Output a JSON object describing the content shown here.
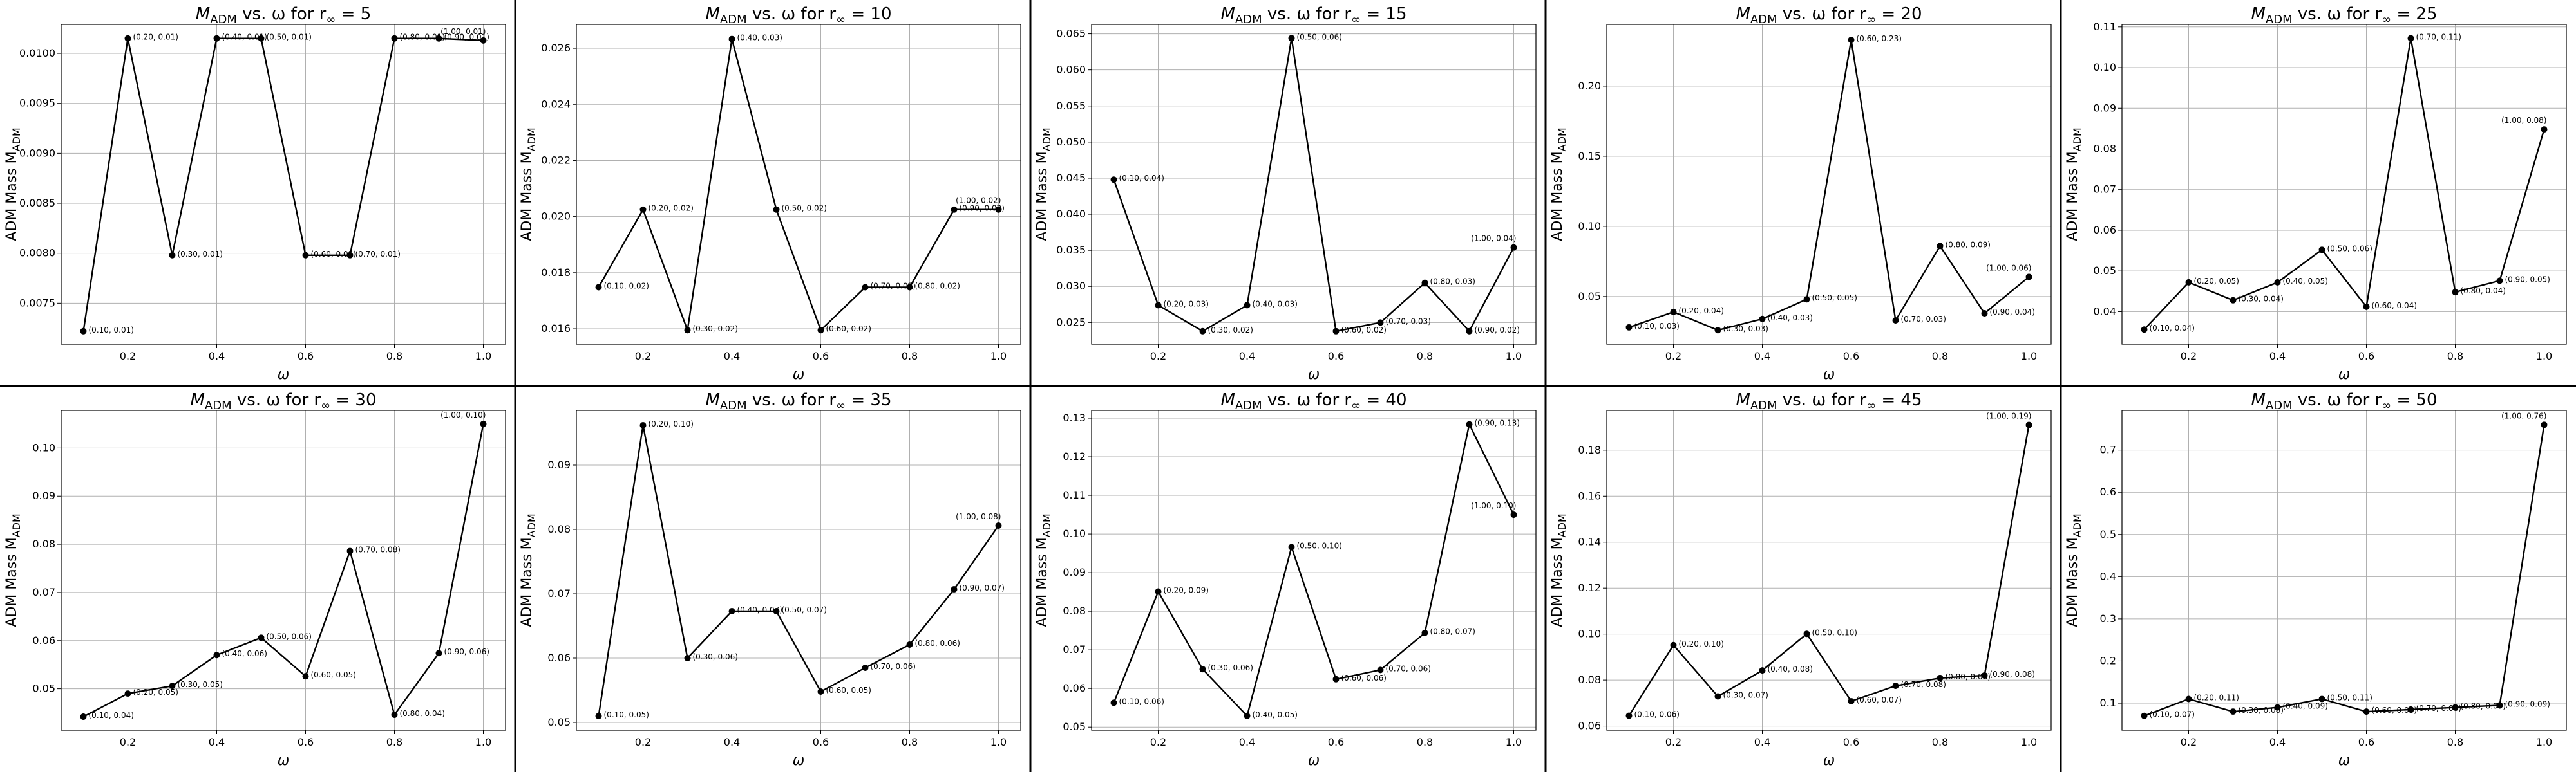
{
  "chart_data": [
    {
      "type": "line",
      "title": "M_ADM vs. ω for r_∞ = 5",
      "title_main": "M",
      "title_sub": "ADM",
      "title_rest": " vs. ω for r",
      "title_sub2": "∞",
      "title_end": " = 5",
      "xlabel": "ω",
      "ylabel": "ADM Mass M",
      "ylabel_sub": "ADM",
      "x": [
        0.1,
        0.2,
        0.3,
        0.4,
        0.5,
        0.6,
        0.7,
        0.8,
        0.9,
        1.0
      ],
      "y": [
        0.00722,
        0.01015,
        0.00798,
        0.01015,
        0.01015,
        0.00798,
        0.00798,
        0.01015,
        0.01015,
        0.01013
      ],
      "labels": [
        "(0.10, 0.01)",
        "(0.20, 0.01)",
        "(0.30, 0.01)",
        "(0.40, 0.01)",
        "(0.50, 0.01)",
        "(0.60, 0.01)",
        "(0.70, 0.01)",
        "(0.80, 0.01)",
        "(0.90, 0.01)",
        "(1.00, 0.01)"
      ],
      "xlim": [
        0.05,
        1.05
      ],
      "ylim": [
        0.00709,
        0.01029
      ],
      "yticks": [
        0.0075,
        0.008,
        0.0085,
        0.009,
        0.0095,
        0.01
      ],
      "ytick_labels": [
        "0.0075",
        "0.0080",
        "0.0085",
        "0.0090",
        "0.0095",
        "0.0100"
      ],
      "xticks": [
        0.2,
        0.4,
        0.6,
        0.8,
        1.0
      ],
      "xtick_labels": [
        "0.2",
        "0.4",
        "0.6",
        "0.8",
        "1.0"
      ],
      "grid": true
    },
    {
      "type": "line",
      "title": "M_ADM vs. ω for r_∞ = 10",
      "title_main": "M",
      "title_sub": "ADM",
      "title_rest": " vs. ω for r",
      "title_sub2": "∞",
      "title_end": " = 10",
      "xlabel": "ω",
      "ylabel": "ADM Mass M",
      "ylabel_sub": "ADM",
      "x": [
        0.1,
        0.2,
        0.3,
        0.4,
        0.5,
        0.6,
        0.7,
        0.8,
        0.9,
        1.0
      ],
      "y": [
        0.01748,
        0.02025,
        0.01595,
        0.02633,
        0.02025,
        0.01595,
        0.01748,
        0.01748,
        0.02025,
        0.02025
      ],
      "labels": [
        "(0.10, 0.02)",
        "(0.20, 0.02)",
        "(0.30, 0.02)",
        "(0.40, 0.03)",
        "(0.50, 0.02)",
        "(0.60, 0.02)",
        "(0.70, 0.02)",
        "(0.80, 0.02)",
        "(0.90, 0.02)",
        "(1.00, 0.02)"
      ],
      "xlim": [
        0.05,
        1.05
      ],
      "ylim": [
        0.01545,
        0.02685
      ],
      "yticks": [
        0.016,
        0.018,
        0.02,
        0.022,
        0.024,
        0.026
      ],
      "ytick_labels": [
        "0.016",
        "0.018",
        "0.020",
        "0.022",
        "0.024",
        "0.026"
      ],
      "xticks": [
        0.2,
        0.4,
        0.6,
        0.8,
        1.0
      ],
      "xtick_labels": [
        "0.2",
        "0.4",
        "0.6",
        "0.8",
        "1.0"
      ],
      "grid": true
    },
    {
      "type": "line",
      "title": "M_ADM vs. ω for r_∞ = 15",
      "title_main": "M",
      "title_sub": "ADM",
      "title_rest": " vs. ω for r",
      "title_sub2": "∞",
      "title_end": " = 15",
      "xlabel": "ω",
      "ylabel": "ADM Mass M",
      "ylabel_sub": "ADM",
      "x": [
        0.1,
        0.2,
        0.3,
        0.4,
        0.5,
        0.6,
        0.7,
        0.8,
        0.9,
        1.0
      ],
      "y": [
        0.0448,
        0.0274,
        0.0238,
        0.0274,
        0.0644,
        0.0238,
        0.025,
        0.0305,
        0.0238,
        0.0354
      ],
      "labels": [
        "(0.10, 0.04)",
        "(0.20, 0.03)",
        "(0.30, 0.02)",
        "(0.40, 0.03)",
        "(0.50, 0.06)",
        "(0.60, 0.02)",
        "(0.70, 0.03)",
        "(0.80, 0.03)",
        "(0.90, 0.02)",
        "(1.00, 0.04)"
      ],
      "xlim": [
        0.05,
        1.05
      ],
      "ylim": [
        0.022,
        0.0663
      ],
      "yticks": [
        0.025,
        0.03,
        0.035,
        0.04,
        0.045,
        0.05,
        0.055,
        0.06,
        0.065
      ],
      "ytick_labels": [
        "0.025",
        "0.030",
        "0.035",
        "0.040",
        "0.045",
        "0.050",
        "0.055",
        "0.060",
        "0.065"
      ],
      "xticks": [
        0.2,
        0.4,
        0.6,
        0.8,
        1.0
      ],
      "xtick_labels": [
        "0.2",
        "0.4",
        "0.6",
        "0.8",
        "1.0"
      ],
      "grid": true
    },
    {
      "type": "line",
      "title": "M_ADM vs. ω for r_∞ = 20",
      "title_main": "M",
      "title_sub": "ADM",
      "title_rest": " vs. ω for r",
      "title_sub2": "∞",
      "title_end": " = 20",
      "xlabel": "ω",
      "ylabel": "ADM Mass M",
      "ylabel_sub": "ADM",
      "x": [
        0.1,
        0.2,
        0.3,
        0.4,
        0.5,
        0.6,
        0.7,
        0.8,
        0.9,
        1.0
      ],
      "y": [
        0.028,
        0.039,
        0.026,
        0.034,
        0.048,
        0.233,
        0.033,
        0.086,
        0.038,
        0.064
      ],
      "labels": [
        "(0.10, 0.03)",
        "(0.20, 0.04)",
        "(0.30, 0.03)",
        "(0.40, 0.03)",
        "(0.50, 0.05)",
        "(0.60, 0.23)",
        "(0.70, 0.03)",
        "(0.80, 0.09)",
        "(0.90, 0.04)",
        "(1.00, 0.06)"
      ],
      "xlim": [
        0.05,
        1.05
      ],
      "ylim": [
        0.016,
        0.244
      ],
      "yticks": [
        0.05,
        0.1,
        0.15,
        0.2
      ],
      "ytick_labels": [
        "0.05",
        "0.10",
        "0.15",
        "0.20"
      ],
      "xticks": [
        0.2,
        0.4,
        0.6,
        0.8,
        1.0
      ],
      "xtick_labels": [
        "0.2",
        "0.4",
        "0.6",
        "0.8",
        "1.0"
      ],
      "grid": true
    },
    {
      "type": "line",
      "title": "M_ADM vs. ω for r_∞ = 25",
      "title_main": "M",
      "title_sub": "ADM",
      "title_rest": " vs. ω for r",
      "title_sub2": "∞",
      "title_end": " = 25",
      "xlabel": "ω",
      "ylabel": "ADM Mass M",
      "ylabel_sub": "ADM",
      "x": [
        0.1,
        0.2,
        0.3,
        0.4,
        0.5,
        0.6,
        0.7,
        0.8,
        0.9,
        1.0
      ],
      "y": [
        0.0356,
        0.0472,
        0.0428,
        0.0472,
        0.0552,
        0.0412,
        0.1072,
        0.0448,
        0.0476,
        0.0848
      ],
      "labels": [
        "(0.10, 0.04)",
        "(0.20, 0.05)",
        "(0.30, 0.04)",
        "(0.40, 0.05)",
        "(0.50, 0.06)",
        "(0.60, 0.04)",
        "(0.70, 0.11)",
        "(0.80, 0.04)",
        "(0.90, 0.05)",
        "(1.00, 0.08)"
      ],
      "xlim": [
        0.05,
        1.05
      ],
      "ylim": [
        0.032,
        0.1106
      ],
      "yticks": [
        0.04,
        0.05,
        0.06,
        0.07,
        0.08,
        0.09,
        0.1,
        0.11
      ],
      "ytick_labels": [
        "0.04",
        "0.05",
        "0.06",
        "0.07",
        "0.08",
        "0.09",
        "0.10",
        "0.11"
      ],
      "xticks": [
        0.2,
        0.4,
        0.6,
        0.8,
        1.0
      ],
      "xtick_labels": [
        "0.2",
        "0.4",
        "0.6",
        "0.8",
        "1.0"
      ],
      "grid": true
    },
    {
      "type": "line",
      "title": "M_ADM vs. ω for r_∞ = 30",
      "title_main": "M",
      "title_sub": "ADM",
      "title_rest": " vs. ω for r",
      "title_sub2": "∞",
      "title_end": " = 30",
      "xlabel": "ω",
      "ylabel": "ADM Mass M",
      "ylabel_sub": "ADM",
      "x": [
        0.1,
        0.2,
        0.3,
        0.4,
        0.5,
        0.6,
        0.7,
        0.8,
        0.9,
        1.0
      ],
      "y": [
        0.0442,
        0.049,
        0.0506,
        0.057,
        0.0606,
        0.0526,
        0.0786,
        0.0446,
        0.0574,
        0.105
      ],
      "labels": [
        "(0.10, 0.04)",
        "(0.20, 0.05)",
        "(0.30, 0.05)",
        "(0.40, 0.06)",
        "(0.50, 0.06)",
        "(0.60, 0.05)",
        "(0.70, 0.08)",
        "(0.80, 0.04)",
        "(0.90, 0.06)",
        "(1.00, 0.10)"
      ],
      "xlim": [
        0.05,
        1.05
      ],
      "ylim": [
        0.0414,
        0.1078
      ],
      "yticks": [
        0.05,
        0.06,
        0.07,
        0.08,
        0.09,
        0.1
      ],
      "ytick_labels": [
        "0.05",
        "0.06",
        "0.07",
        "0.08",
        "0.09",
        "0.10"
      ],
      "xticks": [
        0.2,
        0.4,
        0.6,
        0.8,
        1.0
      ],
      "xtick_labels": [
        "0.2",
        "0.4",
        "0.6",
        "0.8",
        "1.0"
      ],
      "grid": true
    },
    {
      "type": "line",
      "title": "M_ADM vs. ω for r_∞ = 35",
      "title_main": "M",
      "title_sub": "ADM",
      "title_rest": " vs. ω for r",
      "title_sub2": "∞",
      "title_end": " = 35",
      "xlabel": "ω",
      "ylabel": "ADM Mass M",
      "ylabel_sub": "ADM",
      "x": [
        0.1,
        0.2,
        0.3,
        0.4,
        0.5,
        0.6,
        0.7,
        0.8,
        0.9,
        1.0
      ],
      "y": [
        0.051,
        0.0962,
        0.06,
        0.0673,
        0.0673,
        0.0548,
        0.0585,
        0.0621,
        0.0707,
        0.0806
      ],
      "labels": [
        "(0.10, 0.05)",
        "(0.20, 0.10)",
        "(0.30, 0.06)",
        "(0.40, 0.07)",
        "(0.50, 0.07)",
        "(0.60, 0.05)",
        "(0.70, 0.06)",
        "(0.80, 0.06)",
        "(0.90, 0.07)",
        "(1.00, 0.08)"
      ],
      "xlim": [
        0.05,
        1.05
      ],
      "ylim": [
        0.0488,
        0.0985
      ],
      "yticks": [
        0.05,
        0.06,
        0.07,
        0.08,
        0.09
      ],
      "ytick_labels": [
        "0.05",
        "0.06",
        "0.07",
        "0.08",
        "0.09"
      ],
      "xticks": [
        0.2,
        0.4,
        0.6,
        0.8,
        1.0
      ],
      "xtick_labels": [
        "0.2",
        "0.4",
        "0.6",
        "0.8",
        "1.0"
      ],
      "grid": true
    },
    {
      "type": "line",
      "title": "M_ADM vs. ω for r_∞ = 40",
      "title_main": "M",
      "title_sub": "ADM",
      "title_rest": " vs. ω for r",
      "title_sub2": "∞",
      "title_end": " = 40",
      "xlabel": "ω",
      "ylabel": "ADM Mass M",
      "ylabel_sub": "ADM",
      "x": [
        0.1,
        0.2,
        0.3,
        0.4,
        0.5,
        0.6,
        0.7,
        0.8,
        0.9,
        1.0
      ],
      "y": [
        0.0563,
        0.0851,
        0.065,
        0.0529,
        0.0966,
        0.0624,
        0.0648,
        0.0744,
        0.1284,
        0.105
      ],
      "labels": [
        "(0.10, 0.06)",
        "(0.20, 0.09)",
        "(0.30, 0.06)",
        "(0.40, 0.05)",
        "(0.50, 0.10)",
        "(0.60, 0.06)",
        "(0.70, 0.06)",
        "(0.80, 0.07)",
        "(0.90, 0.13)",
        "(1.00, 0.10)"
      ],
      "xlim": [
        0.05,
        1.05
      ],
      "ylim": [
        0.0492,
        0.132
      ],
      "yticks": [
        0.05,
        0.06,
        0.07,
        0.08,
        0.09,
        0.1,
        0.11,
        0.12,
        0.13
      ],
      "ytick_labels": [
        "0.05",
        "0.06",
        "0.07",
        "0.08",
        "0.09",
        "0.10",
        "0.11",
        "0.12",
        "0.13"
      ],
      "xticks": [
        0.2,
        0.4,
        0.6,
        0.8,
        1.0
      ],
      "xtick_labels": [
        "0.2",
        "0.4",
        "0.6",
        "0.8",
        "1.0"
      ],
      "grid": true
    },
    {
      "type": "line",
      "title": "M_ADM vs. ω for r_∞ = 45",
      "title_main": "M",
      "title_sub": "ADM",
      "title_rest": " vs. ω for r",
      "title_sub2": "∞",
      "title_end": " = 45",
      "xlabel": "ω",
      "ylabel": "ADM Mass M",
      "ylabel_sub": "ADM",
      "x": [
        0.1,
        0.2,
        0.3,
        0.4,
        0.5,
        0.6,
        0.7,
        0.8,
        0.9,
        1.0
      ],
      "y": [
        0.0645,
        0.0952,
        0.0729,
        0.0842,
        0.1001,
        0.0708,
        0.0775,
        0.0809,
        0.082,
        0.191
      ],
      "labels": [
        "(0.10, 0.06)",
        "(0.20, 0.10)",
        "(0.30, 0.07)",
        "(0.40, 0.08)",
        "(0.50, 0.10)",
        "(0.60, 0.07)",
        "(0.70, 0.08)",
        "(0.80, 0.08)",
        "(0.90, 0.08)",
        "(1.00, 0.19)"
      ],
      "xlim": [
        0.05,
        1.05
      ],
      "ylim": [
        0.0582,
        0.1973
      ],
      "yticks": [
        0.06,
        0.08,
        0.1,
        0.12,
        0.14,
        0.16,
        0.18
      ],
      "ytick_labels": [
        "0.06",
        "0.08",
        "0.10",
        "0.12",
        "0.14",
        "0.16",
        "0.18"
      ],
      "xticks": [
        0.2,
        0.4,
        0.6,
        0.8,
        1.0
      ],
      "xtick_labels": [
        "0.2",
        "0.4",
        "0.6",
        "0.8",
        "1.0"
      ],
      "grid": true
    },
    {
      "type": "line",
      "title": "M_ADM vs. ω for r_∞ = 50",
      "title_main": "M",
      "title_sub": "ADM",
      "title_rest": " vs. ω for r",
      "title_sub2": "∞",
      "title_end": " = 50",
      "xlabel": "ω",
      "ylabel": "ADM Mass M",
      "ylabel_sub": "ADM",
      "x": [
        0.1,
        0.2,
        0.3,
        0.4,
        0.5,
        0.6,
        0.7,
        0.8,
        0.9,
        1.0
      ],
      "y": [
        0.07,
        0.11,
        0.08,
        0.09,
        0.11,
        0.08,
        0.085,
        0.09,
        0.095,
        0.76
      ],
      "labels": [
        "(0.10, 0.07)",
        "(0.20, 0.11)",
        "(0.30, 0.08)",
        "(0.40, 0.09)",
        "(0.50, 0.11)",
        "(0.60, 0.08)",
        "(0.70, 0.08)",
        "(0.80, 0.09)",
        "(0.90, 0.09)",
        "(1.00, 0.76)"
      ],
      "xlim": [
        0.05,
        1.05
      ],
      "ylim": [
        0.036,
        0.794
      ],
      "yticks": [
        0.1,
        0.2,
        0.3,
        0.4,
        0.5,
        0.6,
        0.7
      ],
      "ytick_labels": [
        "0.1",
        "0.2",
        "0.3",
        "0.4",
        "0.5",
        "0.6",
        "0.7"
      ],
      "xticks": [
        0.2,
        0.4,
        0.6,
        0.8,
        1.0
      ],
      "xtick_labels": [
        "0.2",
        "0.4",
        "0.6",
        "0.8",
        "1.0"
      ],
      "grid": true
    }
  ]
}
